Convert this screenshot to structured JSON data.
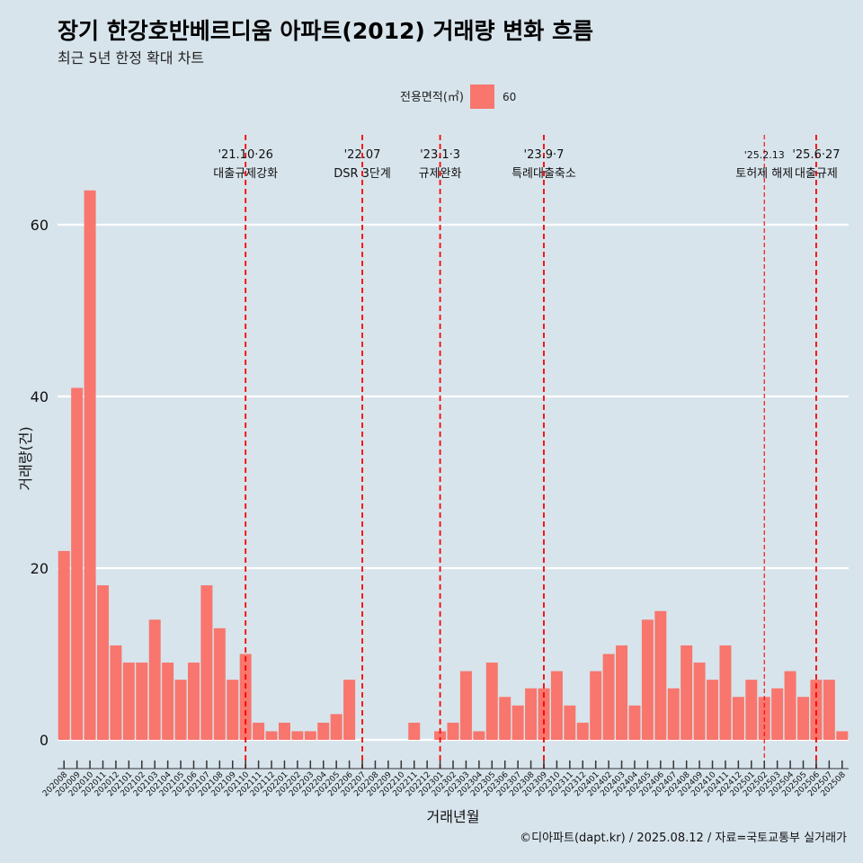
{
  "header": {
    "title": "장기 한강호반베르디움 아파트(2012) 거래량 변화 흐름",
    "subtitle": "최근 5년 한정 확대 차트"
  },
  "caption": "©디아파트(dapt.kr) / 2025.08.12 / 자료=국토교통부 실거래가",
  "colors": {
    "background": "#d7e4ec",
    "bar": "#f8766d",
    "grid": "#ffffff",
    "annotation_line": "#ff0000"
  },
  "chart_data": {
    "type": "bar",
    "title": "장기 한강호반베르디움 아파트(2012) 거래량 변화 흐름",
    "subtitle": "최근 5년 한정 확대 차트",
    "xlabel": "거래년월",
    "ylabel": "거래량(건)",
    "ylim": [
      0,
      66
    ],
    "yticks": [
      0,
      20,
      40,
      60
    ],
    "grid": true,
    "legend": {
      "title": "전용면적(㎡)",
      "position": "top",
      "entries": [
        "60"
      ]
    },
    "categories": [
      "202008",
      "202009",
      "202010",
      "202011",
      "202012",
      "202101",
      "202102",
      "202103",
      "202104",
      "202105",
      "202106",
      "202107",
      "202108",
      "202109",
      "202110",
      "202111",
      "202112",
      "202201",
      "202202",
      "202203",
      "202204",
      "202205",
      "202206",
      "202207",
      "202208",
      "202209",
      "202210",
      "202211",
      "202212",
      "202301",
      "202302",
      "202303",
      "202304",
      "202305",
      "202306",
      "202307",
      "202308",
      "202309",
      "202310",
      "202311",
      "202312",
      "202401",
      "202402",
      "202403",
      "202404",
      "202405",
      "202406",
      "202407",
      "202408",
      "202409",
      "202410",
      "202411",
      "202412",
      "202501",
      "202502",
      "202503",
      "202504",
      "202505",
      "202506",
      "202507",
      "202508"
    ],
    "series": [
      {
        "name": "60",
        "values": [
          22,
          41,
          64,
          18,
          11,
          9,
          9,
          14,
          9,
          7,
          9,
          18,
          13,
          7,
          10,
          2,
          1,
          2,
          1,
          1,
          2,
          3,
          7,
          0,
          0,
          0,
          0,
          2,
          0,
          1,
          2,
          8,
          1,
          9,
          5,
          4,
          6,
          6,
          8,
          4,
          2,
          8,
          10,
          11,
          4,
          14,
          15,
          6,
          11,
          9,
          7,
          11,
          5,
          7,
          5,
          6,
          8,
          5,
          7,
          7,
          1
        ]
      }
    ],
    "annotations": [
      {
        "category": "202110",
        "date": "'21.10·26",
        "label": "대출규제강화",
        "style": "thick"
      },
      {
        "category": "202207",
        "date": "'22.07",
        "label": "DSR 3단계",
        "style": "thick"
      },
      {
        "category": "202301",
        "date": "'23.1·3",
        "label": "규제완화",
        "style": "thick"
      },
      {
        "category": "202309",
        "date": "'23.9·7",
        "label": "특례대출축소",
        "style": "thick"
      },
      {
        "category": "202502",
        "date": "'25.2.13",
        "label": "토허제 해제",
        "style": "thin"
      },
      {
        "category": "202506",
        "date": "'25.6·27",
        "label": "대출규제",
        "style": "thick"
      }
    ]
  }
}
